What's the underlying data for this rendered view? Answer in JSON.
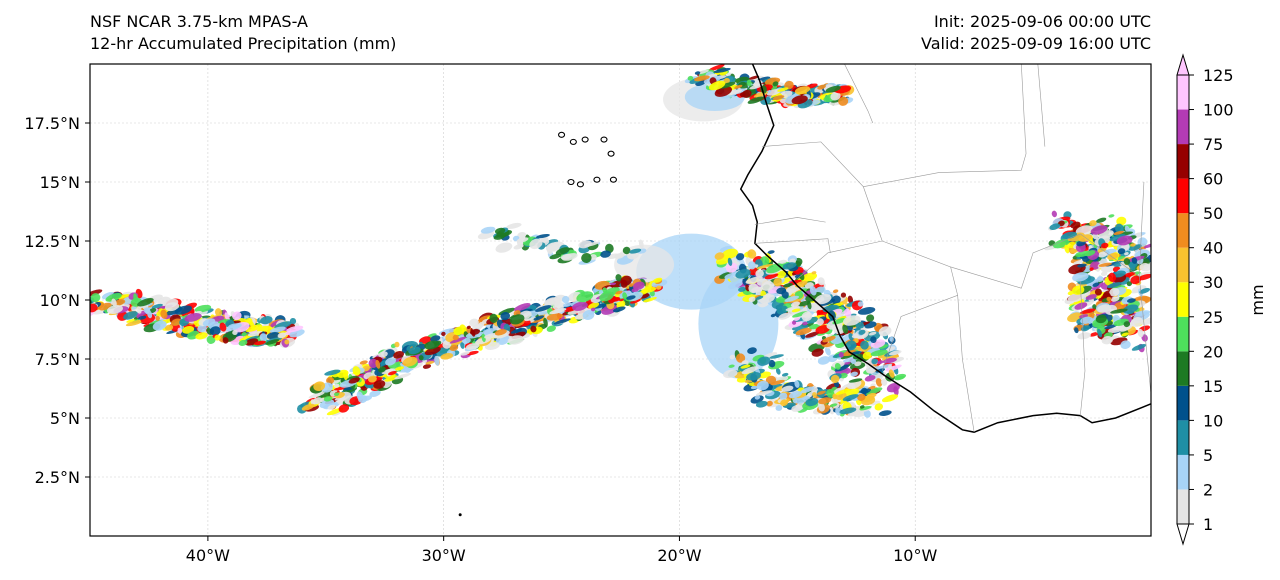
{
  "header": {
    "model": "NSF NCAR 3.75-km MPAS-A",
    "field": "12-hr Accumulated Precipitation (mm)",
    "init": "Init: 2025-09-06 00:00 UTC",
    "valid": "Valid: 2025-09-09 16:00 UTC"
  },
  "map": {
    "lon_range": [
      -45,
      0
    ],
    "lat_range": [
      0,
      20
    ],
    "lon_ticks": [
      {
        "value": -40,
        "label": "40°W"
      },
      {
        "value": -30,
        "label": "30°W"
      },
      {
        "value": -20,
        "label": "20°W"
      },
      {
        "value": -10,
        "label": "10°W"
      }
    ],
    "lat_ticks": [
      {
        "value": 2.5,
        "label": "2.5°N"
      },
      {
        "value": 5,
        "label": "5°N"
      },
      {
        "value": 7.5,
        "label": "7.5°N"
      },
      {
        "value": 10,
        "label": "10°N"
      },
      {
        "value": 12.5,
        "label": "12.5°N"
      },
      {
        "value": 15,
        "label": "15°N"
      },
      {
        "value": 17.5,
        "label": "17.5°N"
      }
    ],
    "gridlines": true
  },
  "colorbar": {
    "unit_label": "mm",
    "levels": [
      "1",
      "2",
      "5",
      "10",
      "15",
      "20",
      "25",
      "30",
      "40",
      "50",
      "60",
      "75",
      "100",
      "125"
    ],
    "colors": [
      "#e5e5e5",
      "#a8d4f7",
      "#1f8fa5",
      "#00518c",
      "#1d7a23",
      "#4ee05c",
      "#ffff00",
      "#f9c22f",
      "#f08c1f",
      "#ff0000",
      "#960000",
      "#b43bb5",
      "#ffc6ff"
    ]
  }
}
